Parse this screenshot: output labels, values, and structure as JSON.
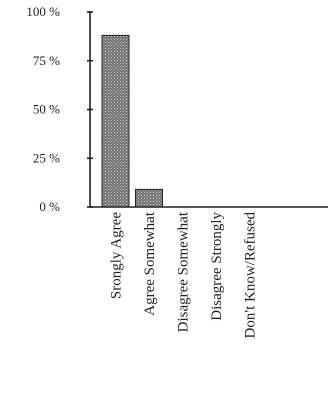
{
  "chart_data": {
    "type": "bar",
    "categories": [
      "Srongly Agree",
      "Agree Somewhat",
      "Disagree Somewhat",
      "Disagree Strongly",
      "Don't Know/Refused"
    ],
    "values": [
      88,
      9,
      0,
      0,
      0
    ],
    "ylim": [
      0,
      100
    ],
    "y_ticks": [
      0,
      25,
      50,
      75,
      100
    ],
    "y_tick_labels": [
      "0 %",
      "25 %",
      "50 %",
      "75 %",
      "100 %"
    ],
    "title": "",
    "xlabel": "",
    "ylabel": "",
    "grid": false,
    "legend": "none"
  },
  "colors": {
    "bar_fill": "#6e6e6e",
    "bar_stroke": "#222222",
    "axis": "#222222"
  }
}
